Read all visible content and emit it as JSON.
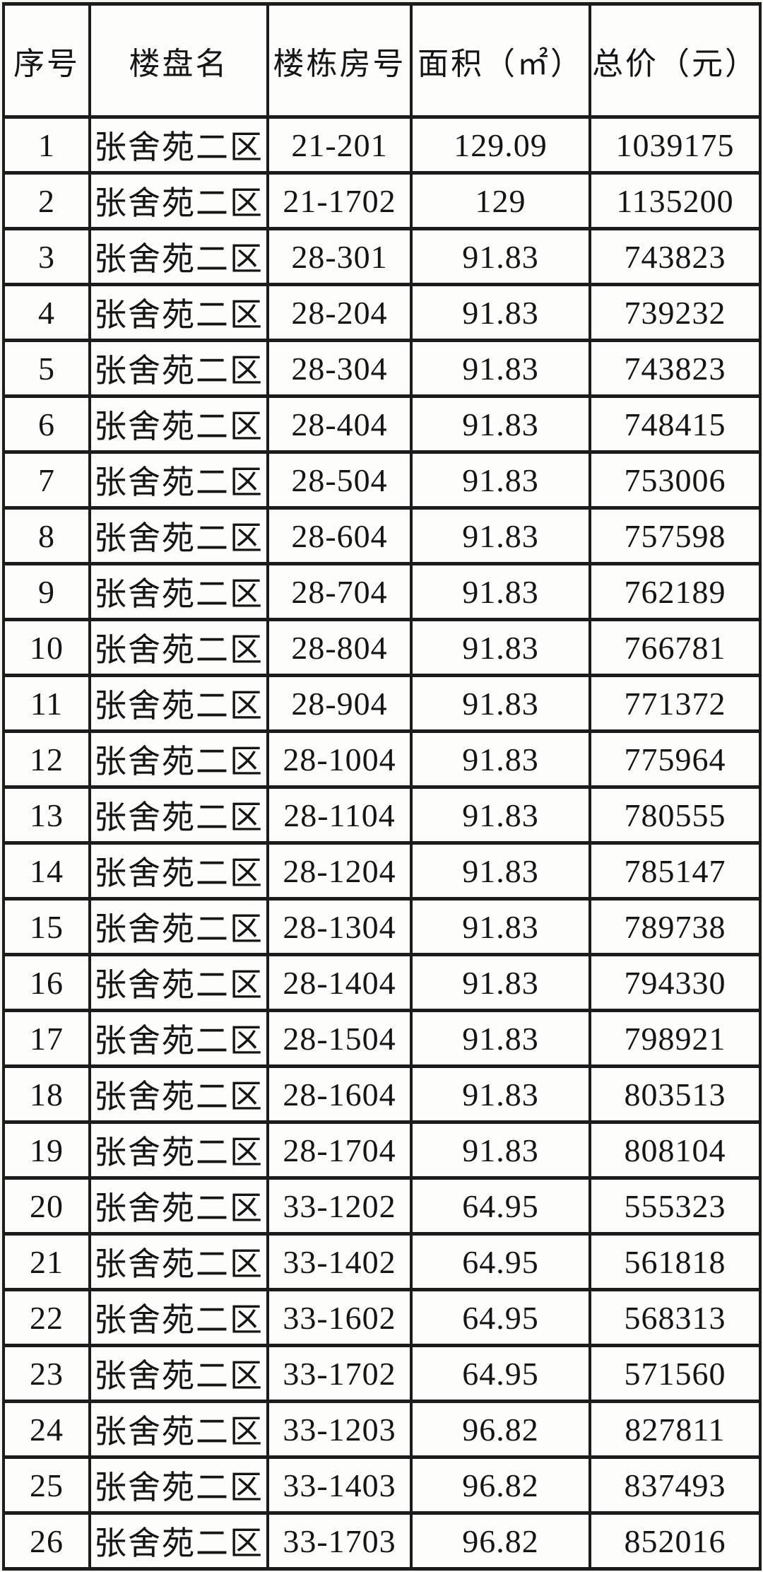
{
  "chart_data": {
    "type": "table",
    "columns": [
      "序号",
      "楼盘名",
      "楼栋房号",
      "面积（㎡）",
      "总价（元）"
    ],
    "column_keys": [
      "index",
      "project-name",
      "unit-number",
      "area",
      "total-price"
    ],
    "rows": [
      [
        "1",
        "张舍苑二区",
        "21-201",
        "129.09",
        "1039175"
      ],
      [
        "2",
        "张舍苑二区",
        "21-1702",
        "129",
        "1135200"
      ],
      [
        "3",
        "张舍苑二区",
        "28-301",
        "91.83",
        "743823"
      ],
      [
        "4",
        "张舍苑二区",
        "28-204",
        "91.83",
        "739232"
      ],
      [
        "5",
        "张舍苑二区",
        "28-304",
        "91.83",
        "743823"
      ],
      [
        "6",
        "张舍苑二区",
        "28-404",
        "91.83",
        "748415"
      ],
      [
        "7",
        "张舍苑二区",
        "28-504",
        "91.83",
        "753006"
      ],
      [
        "8",
        "张舍苑二区",
        "28-604",
        "91.83",
        "757598"
      ],
      [
        "9",
        "张舍苑二区",
        "28-704",
        "91.83",
        "762189"
      ],
      [
        "10",
        "张舍苑二区",
        "28-804",
        "91.83",
        "766781"
      ],
      [
        "11",
        "张舍苑二区",
        "28-904",
        "91.83",
        "771372"
      ],
      [
        "12",
        "张舍苑二区",
        "28-1004",
        "91.83",
        "775964"
      ],
      [
        "13",
        "张舍苑二区",
        "28-1104",
        "91.83",
        "780555"
      ],
      [
        "14",
        "张舍苑二区",
        "28-1204",
        "91.83",
        "785147"
      ],
      [
        "15",
        "张舍苑二区",
        "28-1304",
        "91.83",
        "789738"
      ],
      [
        "16",
        "张舍苑二区",
        "28-1404",
        "91.83",
        "794330"
      ],
      [
        "17",
        "张舍苑二区",
        "28-1504",
        "91.83",
        "798921"
      ],
      [
        "18",
        "张舍苑二区",
        "28-1604",
        "91.83",
        "803513"
      ],
      [
        "19",
        "张舍苑二区",
        "28-1704",
        "91.83",
        "808104"
      ],
      [
        "20",
        "张舍苑二区",
        "33-1202",
        "64.95",
        "555323"
      ],
      [
        "21",
        "张舍苑二区",
        "33-1402",
        "64.95",
        "561818"
      ],
      [
        "22",
        "张舍苑二区",
        "33-1602",
        "64.95",
        "568313"
      ],
      [
        "23",
        "张舍苑二区",
        "33-1702",
        "64.95",
        "571560"
      ],
      [
        "24",
        "张舍苑二区",
        "33-1203",
        "96.82",
        "827811"
      ],
      [
        "25",
        "张舍苑二区",
        "33-1403",
        "96.82",
        "837493"
      ],
      [
        "26",
        "张舍苑二区",
        "33-1703",
        "96.82",
        "852016"
      ]
    ]
  },
  "colors": {
    "page_background": "#f6f5f2",
    "cell_background": "#fdfdfb",
    "border": "#1c1c1c",
    "text": "#151515"
  }
}
